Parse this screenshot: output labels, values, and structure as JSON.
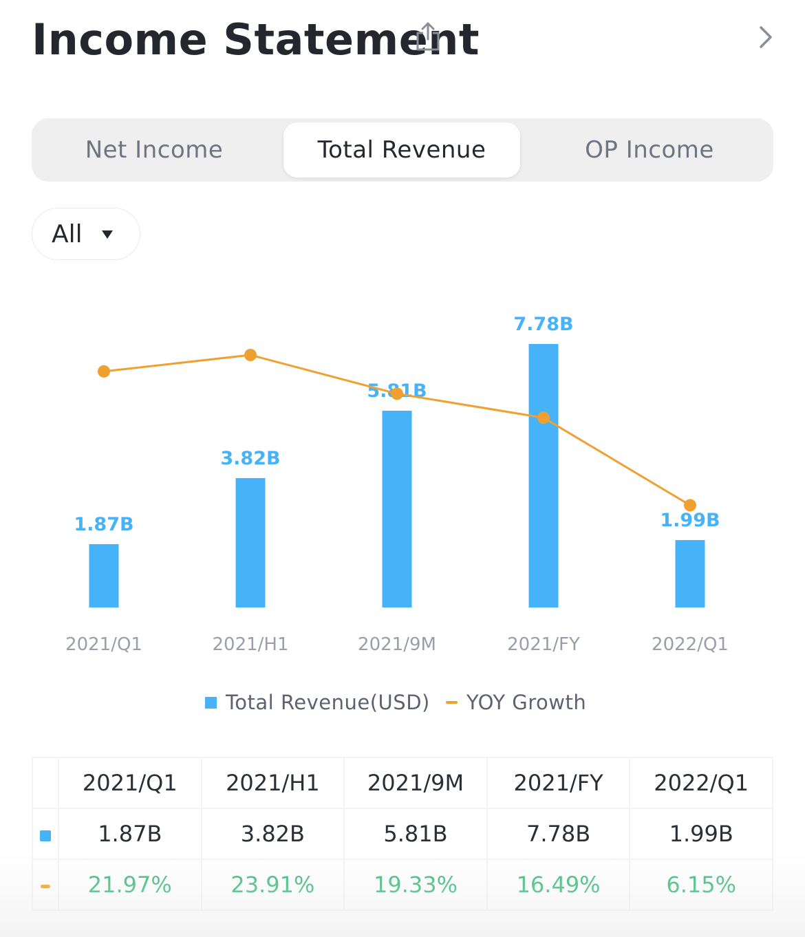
{
  "header": {
    "title": "Income Statement",
    "share_icon": "share-icon",
    "chevron_icon": "chevron-right-icon"
  },
  "tabs": [
    {
      "label": "Net Income",
      "selected": false
    },
    {
      "label": "Total Revenue",
      "selected": true
    },
    {
      "label": "OP Income",
      "selected": false
    }
  ],
  "filter": {
    "selected": "All",
    "icon": "caret-down-icon"
  },
  "colors": {
    "bar": "#46b3f9",
    "line": "#f0a030",
    "growth_text": "#3dbb7a"
  },
  "chart_data": {
    "type": "bar",
    "categories": [
      "2021/Q1",
      "2021/H1",
      "2021/9M",
      "2021/FY",
      "2022/Q1"
    ],
    "series": [
      {
        "name": "Total Revenue(USD)",
        "type": "bar",
        "values": [
          1.87,
          3.82,
          5.81,
          7.78,
          1.99
        ],
        "labels": [
          "1.87B",
          "3.82B",
          "5.81B",
          "7.78B",
          "1.99B"
        ],
        "unit": "B"
      },
      {
        "name": "YOY Growth",
        "type": "line",
        "values": [
          21.97,
          23.91,
          19.33,
          16.49,
          6.15
        ],
        "labels": [
          "21.97%",
          "23.91%",
          "19.33%",
          "16.49%",
          "6.15%"
        ],
        "unit": "%"
      }
    ],
    "grid": false,
    "legend": "bottom-center"
  },
  "legend": {
    "bar_label": "Total Revenue(USD)",
    "line_label": "YOY Growth"
  },
  "table": {
    "headers": [
      "2021/Q1",
      "2021/H1",
      "2021/9M",
      "2021/FY",
      "2022/Q1"
    ],
    "revenue_row": [
      "1.87B",
      "3.82B",
      "5.81B",
      "7.78B",
      "1.99B"
    ],
    "growth_row": [
      "21.97%",
      "23.91%",
      "19.33%",
      "16.49%",
      "6.15%"
    ]
  }
}
